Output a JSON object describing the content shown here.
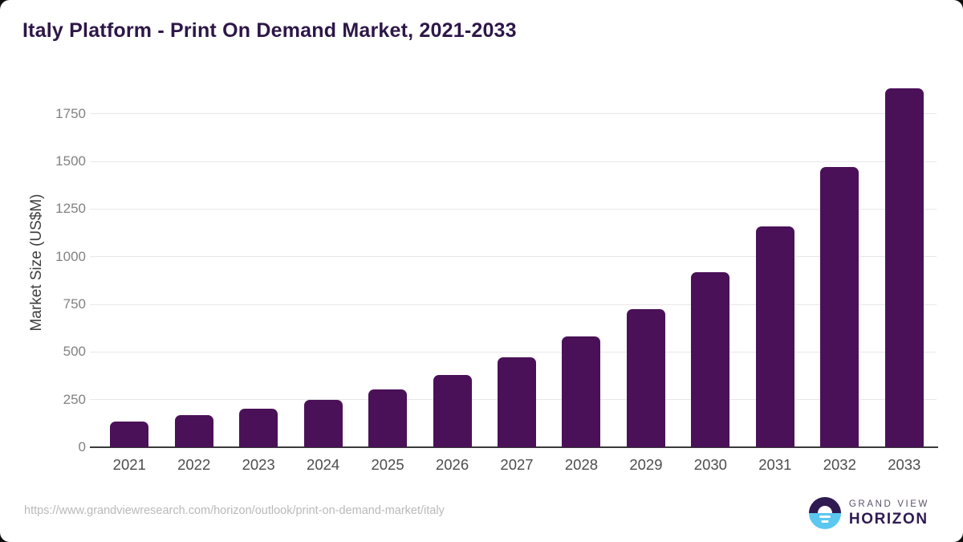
{
  "header": {
    "title": "Italy Platform - Print On Demand Market, 2021-2033"
  },
  "chart_data": {
    "type": "bar",
    "title": "Italy Platform - Print On Demand Market, 2021-2033",
    "categories": [
      "2021",
      "2022",
      "2023",
      "2024",
      "2025",
      "2026",
      "2027",
      "2028",
      "2029",
      "2030",
      "2031",
      "2032",
      "2033"
    ],
    "values": [
      135,
      169,
      204,
      250,
      305,
      378,
      470,
      583,
      727,
      918,
      1158,
      1470,
      1885
    ],
    "xlabel": "",
    "ylabel": "Market Size (US$M)",
    "y_ticks": [
      0,
      250,
      500,
      750,
      1000,
      1250,
      1500,
      1750
    ],
    "ylim": [
      0,
      1926
    ],
    "grid": true,
    "legend": false,
    "bar_color": "#4a1158"
  },
  "colors": {
    "bar": "#4a1158",
    "title": "#2d1747",
    "gridline": "#e8e8e8",
    "axis_line": "#3a3a3a",
    "y_tick_label": "#828282",
    "x_tick_label": "#4d4d4d",
    "source_url": "#b9b9b9",
    "logo_dark_purple": "#2f1b52",
    "logo_light_blue": "#5cc7f0"
  },
  "footer": {
    "source_url": "https://www.grandviewresearch.com/horizon/outlook/print-on-demand-market/italy",
    "logo": {
      "top": "GRAND VIEW",
      "bottom": "HORIZON"
    }
  }
}
